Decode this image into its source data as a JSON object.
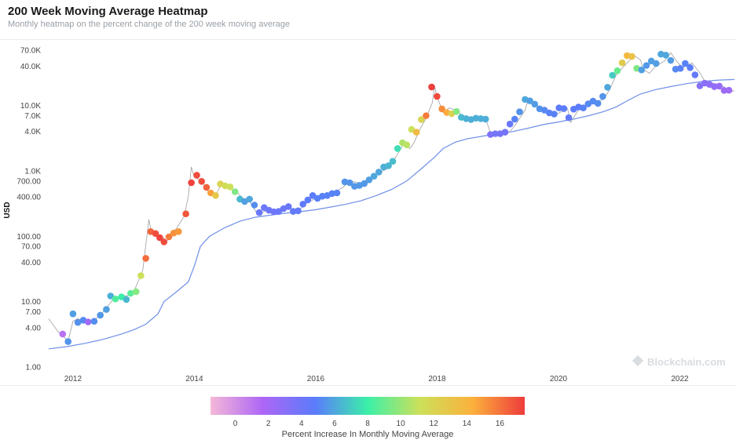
{
  "header": {
    "title": "200 Week Moving Average Heatmap",
    "subtitle": "Monthly heatmap on the percent change of the 200 week moving average"
  },
  "watermark": "Blockchain.com",
  "colors": {
    "ma_line": "#6f8fe8",
    "price_line": "#9e9e9e",
    "scale": [
      "#f5b8d8",
      "#ad66f5",
      "#5a7cfb",
      "#3bf0a8",
      "#cde05a",
      "#fbb13c",
      "#ee3c3c"
    ]
  },
  "chart_data": {
    "type": "scatter",
    "yscale": "log",
    "ylabel": "USD",
    "ylim": [
      1,
      90000
    ],
    "xlim": [
      2011.6,
      2022.9
    ],
    "x_ticks": [
      {
        "value": 2012,
        "label": "2012"
      },
      {
        "value": 2014,
        "label": "2014"
      },
      {
        "value": 2016,
        "label": "2016"
      },
      {
        "value": 2018,
        "label": "2018"
      },
      {
        "value": 2020,
        "label": "2020"
      },
      {
        "value": 2022,
        "label": "2022"
      }
    ],
    "y_ticks": [
      {
        "value": 1,
        "label": "1.00"
      },
      {
        "value": 4,
        "label": "4.00"
      },
      {
        "value": 7,
        "label": "7.00"
      },
      {
        "value": 10,
        "label": "10.00"
      },
      {
        "value": 40,
        "label": "40.00"
      },
      {
        "value": 70,
        "label": "70.00"
      },
      {
        "value": 100,
        "label": "100.00"
      },
      {
        "value": 400,
        "label": "400.00"
      },
      {
        "value": 700,
        "label": "700.00"
      },
      {
        "value": 1000,
        "label": "1.0K"
      },
      {
        "value": 4000,
        "label": "4.0K"
      },
      {
        "value": 7000,
        "label": "7.0K"
      },
      {
        "value": 10000,
        "label": "10.0K"
      },
      {
        "value": 40000,
        "label": "40.0K"
      },
      {
        "value": 70000,
        "label": "70.0K"
      }
    ],
    "colorbar": {
      "title": "Percent Increase In Monthly Moving Average",
      "min": -1.5,
      "max": 17.5,
      "ticks": [
        0,
        2,
        4,
        6,
        8,
        10,
        12,
        14,
        16
      ]
    },
    "price_line": [
      [
        2011.6,
        5.5
      ],
      [
        2011.75,
        3.5
      ],
      [
        2011.83,
        3.0
      ],
      [
        2011.92,
        2.5
      ],
      [
        2012.0,
        5.0
      ],
      [
        2012.08,
        5.5
      ],
      [
        2012.2,
        4.9
      ],
      [
        2012.35,
        5.2
      ],
      [
        2012.5,
        7.0
      ],
      [
        2012.65,
        10.5
      ],
      [
        2012.75,
        11.8
      ],
      [
        2012.92,
        12.5
      ],
      [
        2013.0,
        14.0
      ],
      [
        2013.15,
        30
      ],
      [
        2013.25,
        180
      ],
      [
        2013.3,
        110
      ],
      [
        2013.45,
        100
      ],
      [
        2013.55,
        85
      ],
      [
        2013.7,
        130
      ],
      [
        2013.83,
        200
      ],
      [
        2013.9,
        400
      ],
      [
        2013.95,
        1150
      ],
      [
        2014.0,
        800
      ],
      [
        2014.12,
        700
      ],
      [
        2014.25,
        450
      ],
      [
        2014.35,
        420
      ],
      [
        2014.45,
        650
      ],
      [
        2014.55,
        600
      ],
      [
        2014.7,
        470
      ],
      [
        2014.8,
        380
      ],
      [
        2014.9,
        350
      ],
      [
        2015.0,
        250
      ],
      [
        2015.05,
        215
      ],
      [
        2015.2,
        250
      ],
      [
        2015.35,
        240
      ],
      [
        2015.55,
        280
      ],
      [
        2015.7,
        240
      ],
      [
        2015.85,
        320
      ],
      [
        2016.0,
        380
      ],
      [
        2016.2,
        420
      ],
      [
        2016.45,
        560
      ],
      [
        2016.55,
        700
      ],
      [
        2016.75,
        650
      ],
      [
        2016.85,
        740
      ],
      [
        2017.0,
        900
      ],
      [
        2017.2,
        1100
      ],
      [
        2017.35,
        1800
      ],
      [
        2017.45,
        2600
      ],
      [
        2017.55,
        2200
      ],
      [
        2017.62,
        2700
      ],
      [
        2017.72,
        4400
      ],
      [
        2017.82,
        6400
      ],
      [
        2017.92,
        11000
      ],
      [
        2017.96,
        19500
      ],
      [
        2018.0,
        13500
      ],
      [
        2018.1,
        7800
      ],
      [
        2018.2,
        9200
      ],
      [
        2018.35,
        8200
      ],
      [
        2018.45,
        6200
      ],
      [
        2018.6,
        6400
      ],
      [
        2018.8,
        6300
      ],
      [
        2018.88,
        3800
      ],
      [
        2019.0,
        3500
      ],
      [
        2019.2,
        4000
      ],
      [
        2019.3,
        5200
      ],
      [
        2019.45,
        8500
      ],
      [
        2019.5,
        12000
      ],
      [
        2019.6,
        10500
      ],
      [
        2019.8,
        8300
      ],
      [
        2019.95,
        7200
      ],
      [
        2020.15,
        9000
      ],
      [
        2020.2,
        5500
      ],
      [
        2020.35,
        9200
      ],
      [
        2020.55,
        11000
      ],
      [
        2020.75,
        12500
      ],
      [
        2020.85,
        18000
      ],
      [
        2020.95,
        29000
      ],
      [
        2021.08,
        40000
      ],
      [
        2021.25,
        58000
      ],
      [
        2021.35,
        50000
      ],
      [
        2021.4,
        36000
      ],
      [
        2021.5,
        31000
      ],
      [
        2021.6,
        40000
      ],
      [
        2021.75,
        48000
      ],
      [
        2021.85,
        64000
      ],
      [
        2021.95,
        47000
      ],
      [
        2022.05,
        38000
      ],
      [
        2022.2,
        45000
      ],
      [
        2022.35,
        30000
      ],
      [
        2022.45,
        20000
      ],
      [
        2022.55,
        22000
      ],
      [
        2022.7,
        20000
      ],
      [
        2022.85,
        16500
      ],
      [
        2022.9,
        16800
      ]
    ],
    "ma_line": [
      [
        2011.6,
        1.9
      ],
      [
        2011.9,
        2.05
      ],
      [
        2012.2,
        2.3
      ],
      [
        2012.5,
        2.65
      ],
      [
        2012.8,
        3.2
      ],
      [
        2013.0,
        3.7
      ],
      [
        2013.2,
        4.5
      ],
      [
        2013.4,
        6.5
      ],
      [
        2013.5,
        10
      ],
      [
        2013.7,
        14
      ],
      [
        2013.9,
        20
      ],
      [
        2014.0,
        35
      ],
      [
        2014.1,
        70
      ],
      [
        2014.25,
        100
      ],
      [
        2014.5,
        135
      ],
      [
        2014.75,
        170
      ],
      [
        2015.0,
        195
      ],
      [
        2015.25,
        210
      ],
      [
        2015.5,
        225
      ],
      [
        2015.75,
        238
      ],
      [
        2016.0,
        255
      ],
      [
        2016.25,
        280
      ],
      [
        2016.5,
        310
      ],
      [
        2016.75,
        350
      ],
      [
        2017.0,
        420
      ],
      [
        2017.25,
        520
      ],
      [
        2017.5,
        700
      ],
      [
        2017.75,
        1100
      ],
      [
        2017.95,
        1600
      ],
      [
        2018.1,
        2200
      ],
      [
        2018.3,
        2750
      ],
      [
        2018.5,
        3100
      ],
      [
        2018.75,
        3400
      ],
      [
        2019.0,
        3700
      ],
      [
        2019.25,
        4000
      ],
      [
        2019.5,
        4500
      ],
      [
        2019.75,
        5100
      ],
      [
        2020.0,
        5600
      ],
      [
        2020.25,
        6200
      ],
      [
        2020.5,
        7000
      ],
      [
        2020.75,
        8100
      ],
      [
        2020.95,
        9500
      ],
      [
        2021.15,
        12000
      ],
      [
        2021.35,
        15000
      ],
      [
        2021.6,
        17500
      ],
      [
        2021.85,
        19500
      ],
      [
        2022.1,
        21500
      ],
      [
        2022.4,
        23500
      ],
      [
        2022.65,
        24500
      ],
      [
        2022.9,
        25000
      ]
    ],
    "points": [
      {
        "x": 2011.83,
        "y": 3.2,
        "v": 1.2
      },
      {
        "x": 2011.92,
        "y": 2.45,
        "v": 5.5
      },
      {
        "x": 2012.0,
        "y": 6.5,
        "v": 5.8
      },
      {
        "x": 2012.08,
        "y": 4.8,
        "v": 5.4
      },
      {
        "x": 2012.17,
        "y": 5.2,
        "v": 5.2
      },
      {
        "x": 2012.25,
        "y": 4.9,
        "v": 2.2
      },
      {
        "x": 2012.35,
        "y": 5.0,
        "v": 5.3
      },
      {
        "x": 2012.45,
        "y": 6.2,
        "v": 5.6
      },
      {
        "x": 2012.55,
        "y": 7.6,
        "v": 5.8
      },
      {
        "x": 2012.62,
        "y": 12.2,
        "v": 6.2
      },
      {
        "x": 2012.7,
        "y": 11.0,
        "v": 8.5
      },
      {
        "x": 2012.8,
        "y": 11.8,
        "v": 8.0
      },
      {
        "x": 2012.88,
        "y": 10.8,
        "v": 6.5
      },
      {
        "x": 2012.95,
        "y": 13.4,
        "v": 8.7
      },
      {
        "x": 2013.04,
        "y": 14.2,
        "v": 9.6
      },
      {
        "x": 2013.12,
        "y": 25,
        "v": 11.2
      },
      {
        "x": 2013.2,
        "y": 46,
        "v": 16.2
      },
      {
        "x": 2013.28,
        "y": 118,
        "v": 16.4
      },
      {
        "x": 2013.36,
        "y": 110,
        "v": 17.0
      },
      {
        "x": 2013.43,
        "y": 95,
        "v": 17.3
      },
      {
        "x": 2013.5,
        "y": 82,
        "v": 17.1
      },
      {
        "x": 2013.58,
        "y": 98,
        "v": 15.8
      },
      {
        "x": 2013.66,
        "y": 112,
        "v": 15.2
      },
      {
        "x": 2013.74,
        "y": 118,
        "v": 15.0
      },
      {
        "x": 2013.86,
        "y": 220,
        "v": 16.8
      },
      {
        "x": 2013.95,
        "y": 660,
        "v": 17.3
      },
      {
        "x": 2014.04,
        "y": 860,
        "v": 17.1
      },
      {
        "x": 2014.12,
        "y": 690,
        "v": 17.0
      },
      {
        "x": 2014.2,
        "y": 560,
        "v": 16.5
      },
      {
        "x": 2014.27,
        "y": 460,
        "v": 14.8
      },
      {
        "x": 2014.35,
        "y": 420,
        "v": 12.8
      },
      {
        "x": 2014.43,
        "y": 630,
        "v": 12.0
      },
      {
        "x": 2014.51,
        "y": 590,
        "v": 11.5
      },
      {
        "x": 2014.59,
        "y": 570,
        "v": 11.2
      },
      {
        "x": 2014.67,
        "y": 480,
        "v": 9.5
      },
      {
        "x": 2014.75,
        "y": 370,
        "v": 6.5
      },
      {
        "x": 2014.83,
        "y": 340,
        "v": 5.8
      },
      {
        "x": 2014.91,
        "y": 370,
        "v": 6.0
      },
      {
        "x": 2014.99,
        "y": 300,
        "v": 5.3
      },
      {
        "x": 2015.07,
        "y": 230,
        "v": 4.2
      },
      {
        "x": 2015.15,
        "y": 275,
        "v": 4.2
      },
      {
        "x": 2015.23,
        "y": 250,
        "v": 4.2
      },
      {
        "x": 2015.31,
        "y": 237,
        "v": 4.0
      },
      {
        "x": 2015.39,
        "y": 240,
        "v": 4.2
      },
      {
        "x": 2015.47,
        "y": 265,
        "v": 4.2
      },
      {
        "x": 2015.55,
        "y": 285,
        "v": 4.3
      },
      {
        "x": 2015.63,
        "y": 240,
        "v": 4.5
      },
      {
        "x": 2015.71,
        "y": 245,
        "v": 4.5
      },
      {
        "x": 2015.79,
        "y": 310,
        "v": 4.6
      },
      {
        "x": 2015.87,
        "y": 360,
        "v": 4.8
      },
      {
        "x": 2015.95,
        "y": 420,
        "v": 4.8
      },
      {
        "x": 2016.03,
        "y": 380,
        "v": 5.0
      },
      {
        "x": 2016.11,
        "y": 410,
        "v": 5.0
      },
      {
        "x": 2016.19,
        "y": 420,
        "v": 5.0
      },
      {
        "x": 2016.27,
        "y": 450,
        "v": 5.0
      },
      {
        "x": 2016.35,
        "y": 460,
        "v": 5.0
      },
      {
        "x": 2016.48,
        "y": 680,
        "v": 5.5
      },
      {
        "x": 2016.56,
        "y": 660,
        "v": 5.5
      },
      {
        "x": 2016.64,
        "y": 580,
        "v": 5.6
      },
      {
        "x": 2016.72,
        "y": 600,
        "v": 5.6
      },
      {
        "x": 2016.8,
        "y": 640,
        "v": 5.6
      },
      {
        "x": 2016.88,
        "y": 730,
        "v": 5.8
      },
      {
        "x": 2016.96,
        "y": 830,
        "v": 6.0
      },
      {
        "x": 2017.04,
        "y": 960,
        "v": 6.0
      },
      {
        "x": 2017.12,
        "y": 1150,
        "v": 6.2
      },
      {
        "x": 2017.2,
        "y": 1200,
        "v": 6.4
      },
      {
        "x": 2017.27,
        "y": 1400,
        "v": 6.6
      },
      {
        "x": 2017.35,
        "y": 2200,
        "v": 7.5
      },
      {
        "x": 2017.43,
        "y": 2700,
        "v": 10.5
      },
      {
        "x": 2017.5,
        "y": 2500,
        "v": 10.8
      },
      {
        "x": 2017.58,
        "y": 4300,
        "v": 11.2
      },
      {
        "x": 2017.66,
        "y": 3900,
        "v": 13.6
      },
      {
        "x": 2017.74,
        "y": 6100,
        "v": 12.0
      },
      {
        "x": 2017.82,
        "y": 7000,
        "v": 15.8
      },
      {
        "x": 2017.91,
        "y": 19200,
        "v": 17.4
      },
      {
        "x": 2018.0,
        "y": 13800,
        "v": 17.1
      },
      {
        "x": 2018.08,
        "y": 8900,
        "v": 15.3
      },
      {
        "x": 2018.16,
        "y": 7800,
        "v": 14.5
      },
      {
        "x": 2018.24,
        "y": 7500,
        "v": 12.2
      },
      {
        "x": 2018.32,
        "y": 8100,
        "v": 9.6
      },
      {
        "x": 2018.4,
        "y": 6600,
        "v": 6.5
      },
      {
        "x": 2018.48,
        "y": 6300,
        "v": 6.3
      },
      {
        "x": 2018.56,
        "y": 6100,
        "v": 6.2
      },
      {
        "x": 2018.64,
        "y": 6400,
        "v": 6.2
      },
      {
        "x": 2018.72,
        "y": 6300,
        "v": 6.2
      },
      {
        "x": 2018.8,
        "y": 6200,
        "v": 6.2
      },
      {
        "x": 2018.88,
        "y": 3600,
        "v": 3.5
      },
      {
        "x": 2018.96,
        "y": 3700,
        "v": 3.8
      },
      {
        "x": 2019.04,
        "y": 3700,
        "v": 3.8
      },
      {
        "x": 2019.12,
        "y": 3900,
        "v": 3.8
      },
      {
        "x": 2019.2,
        "y": 5200,
        "v": 4.3
      },
      {
        "x": 2019.28,
        "y": 6200,
        "v": 5.0
      },
      {
        "x": 2019.36,
        "y": 8000,
        "v": 5.5
      },
      {
        "x": 2019.45,
        "y": 12400,
        "v": 6.0
      },
      {
        "x": 2019.53,
        "y": 11800,
        "v": 5.8
      },
      {
        "x": 2019.61,
        "y": 10500,
        "v": 5.7
      },
      {
        "x": 2019.69,
        "y": 8900,
        "v": 5.5
      },
      {
        "x": 2019.77,
        "y": 8500,
        "v": 5.2
      },
      {
        "x": 2019.85,
        "y": 7700,
        "v": 5.0
      },
      {
        "x": 2019.93,
        "y": 7400,
        "v": 5.0
      },
      {
        "x": 2020.01,
        "y": 9200,
        "v": 4.8
      },
      {
        "x": 2020.09,
        "y": 9000,
        "v": 4.8
      },
      {
        "x": 2020.17,
        "y": 6500,
        "v": 4.5
      },
      {
        "x": 2020.25,
        "y": 8800,
        "v": 4.8
      },
      {
        "x": 2020.33,
        "y": 9500,
        "v": 4.8
      },
      {
        "x": 2020.41,
        "y": 9200,
        "v": 5.0
      },
      {
        "x": 2020.49,
        "y": 10600,
        "v": 5.2
      },
      {
        "x": 2020.57,
        "y": 11700,
        "v": 5.2
      },
      {
        "x": 2020.65,
        "y": 10800,
        "v": 5.3
      },
      {
        "x": 2020.73,
        "y": 13800,
        "v": 5.5
      },
      {
        "x": 2020.81,
        "y": 19000,
        "v": 6.0
      },
      {
        "x": 2020.89,
        "y": 29000,
        "v": 7.0
      },
      {
        "x": 2020.97,
        "y": 34000,
        "v": 9.0
      },
      {
        "x": 2021.05,
        "y": 45000,
        "v": 12.5
      },
      {
        "x": 2021.13,
        "y": 58000,
        "v": 13.8
      },
      {
        "x": 2021.21,
        "y": 56500,
        "v": 13.2
      },
      {
        "x": 2021.29,
        "y": 37000,
        "v": 9.5
      },
      {
        "x": 2021.37,
        "y": 35000,
        "v": 5.8
      },
      {
        "x": 2021.45,
        "y": 41000,
        "v": 5.6
      },
      {
        "x": 2021.53,
        "y": 48000,
        "v": 5.8
      },
      {
        "x": 2021.61,
        "y": 44000,
        "v": 5.8
      },
      {
        "x": 2021.69,
        "y": 61000,
        "v": 6.0
      },
      {
        "x": 2021.77,
        "y": 59000,
        "v": 6.0
      },
      {
        "x": 2021.85,
        "y": 49000,
        "v": 5.7
      },
      {
        "x": 2021.93,
        "y": 36000,
        "v": 5.2
      },
      {
        "x": 2022.01,
        "y": 37000,
        "v": 5.0
      },
      {
        "x": 2022.09,
        "y": 44000,
        "v": 5.0
      },
      {
        "x": 2022.17,
        "y": 38000,
        "v": 4.8
      },
      {
        "x": 2022.25,
        "y": 29500,
        "v": 4.4
      },
      {
        "x": 2022.33,
        "y": 20000,
        "v": 3.2
      },
      {
        "x": 2022.41,
        "y": 22000,
        "v": 3.0
      },
      {
        "x": 2022.49,
        "y": 21000,
        "v": 2.8
      },
      {
        "x": 2022.57,
        "y": 19500,
        "v": 2.6
      },
      {
        "x": 2022.65,
        "y": 19800,
        "v": 2.5
      },
      {
        "x": 2022.73,
        "y": 17000,
        "v": 2.3
      },
      {
        "x": 2022.81,
        "y": 17100,
        "v": 2.2
      }
    ]
  }
}
